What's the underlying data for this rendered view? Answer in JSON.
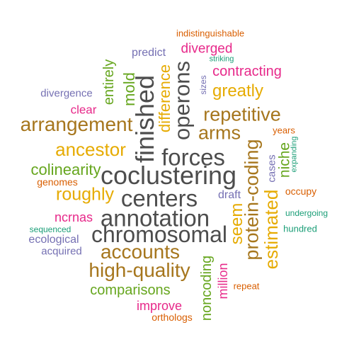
{
  "palette": {
    "orange": "#d95f02",
    "purple": "#7570b3",
    "pink": "#e7298a",
    "green": "#66a61e",
    "gold": "#e6ab02",
    "brown": "#a6761d",
    "teal": "#1b9e77",
    "gray": "#4d4d4d"
  },
  "words": [
    {
      "text": "indistinguishable",
      "color": "orange"
    },
    {
      "text": "predict",
      "color": "purple"
    },
    {
      "text": "diverged",
      "color": "pink"
    },
    {
      "text": "striking",
      "color": "teal"
    },
    {
      "text": "entirely",
      "color": "green"
    },
    {
      "text": "mold",
      "color": "green"
    },
    {
      "text": "difference",
      "color": "gold"
    },
    {
      "text": "operons",
      "color": "gray"
    },
    {
      "text": "sizes",
      "color": "purple"
    },
    {
      "text": "contracting",
      "color": "pink"
    },
    {
      "text": "divergence",
      "color": "purple"
    },
    {
      "text": "greatly",
      "color": "gold"
    },
    {
      "text": "finished",
      "color": "gray"
    },
    {
      "text": "clear",
      "color": "pink"
    },
    {
      "text": "repetitive",
      "color": "brown"
    },
    {
      "text": "arrangement",
      "color": "brown"
    },
    {
      "text": "years",
      "color": "orange"
    },
    {
      "text": "arms",
      "color": "brown"
    },
    {
      "text": "ancestor",
      "color": "gold"
    },
    {
      "text": "forces",
      "color": "gray"
    },
    {
      "text": "niche",
      "color": "green"
    },
    {
      "text": "expanding",
      "color": "teal"
    },
    {
      "text": "cases",
      "color": "purple"
    },
    {
      "text": "protein-coding",
      "color": "brown"
    },
    {
      "text": "colinearity",
      "color": "green"
    },
    {
      "text": "coclustering",
      "color": "gray"
    },
    {
      "text": "genomes",
      "color": "orange"
    },
    {
      "text": "estimated",
      "color": "gold"
    },
    {
      "text": "occupy",
      "color": "orange"
    },
    {
      "text": "roughly",
      "color": "gold"
    },
    {
      "text": "centers",
      "color": "gray"
    },
    {
      "text": "draft",
      "color": "purple"
    },
    {
      "text": "seem",
      "color": "gold"
    },
    {
      "text": "undergoing",
      "color": "teal"
    },
    {
      "text": "ncrnas",
      "color": "pink"
    },
    {
      "text": "annotation",
      "color": "gray"
    },
    {
      "text": "sequenced",
      "color": "teal"
    },
    {
      "text": "hundred",
      "color": "teal"
    },
    {
      "text": "chromosomal",
      "color": "gray"
    },
    {
      "text": "ecological",
      "color": "purple"
    },
    {
      "text": "acquired",
      "color": "purple"
    },
    {
      "text": "accounts",
      "color": "brown"
    },
    {
      "text": "high-quality",
      "color": "brown"
    },
    {
      "text": "million",
      "color": "pink"
    },
    {
      "text": "noncoding",
      "color": "green"
    },
    {
      "text": "repeat",
      "color": "orange"
    },
    {
      "text": "comparisons",
      "color": "green"
    },
    {
      "text": "improve",
      "color": "pink"
    },
    {
      "text": "orthologs",
      "color": "orange"
    }
  ]
}
